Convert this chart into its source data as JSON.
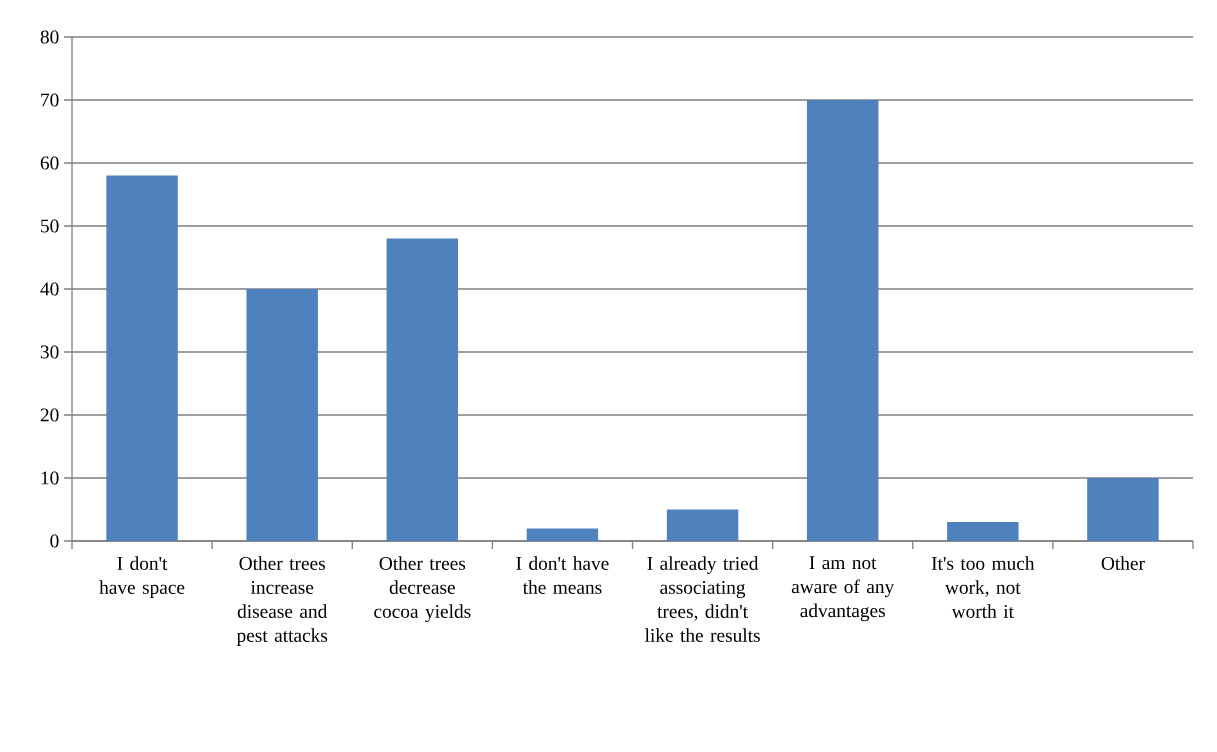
{
  "chart_data": {
    "type": "bar",
    "categories": [
      "I don't have space",
      "Other trees increase disease and pest attacks",
      "Other trees decrease cocoa yields",
      "I don't have the means",
      "I already tried associating trees, didn't like the results",
      "I am not aware of any advantages",
      "It's too much work, not worth it",
      "Other"
    ],
    "values": [
      58,
      40,
      48,
      2,
      5,
      70,
      3,
      10
    ],
    "color": "#4f81bd",
    "ylim": [
      0,
      80
    ],
    "yticks": [
      0,
      10,
      20,
      30,
      40,
      50,
      60,
      70,
      80
    ],
    "grid": "y"
  }
}
